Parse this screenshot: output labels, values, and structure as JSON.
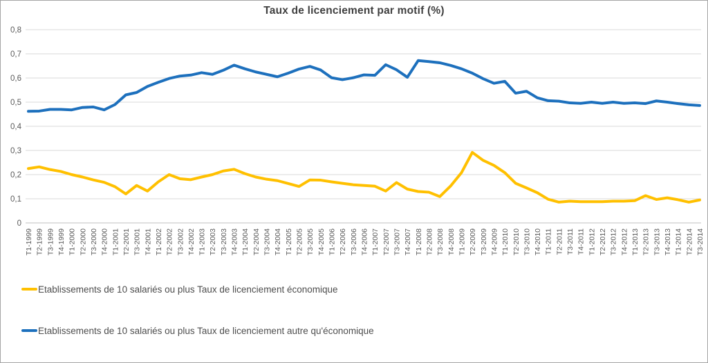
{
  "chart_data": {
    "type": "line",
    "title": "Taux de licenciement par motif (%)",
    "xlabel": "",
    "ylabel": "",
    "ylim": [
      0,
      0.8
    ],
    "ytick_step": 0.1,
    "decimal_separator": ",",
    "grid": true,
    "legend_position": "bottom-left",
    "categories": [
      "T1-1999",
      "T2-1999",
      "T3-1999",
      "T4-1999",
      "T1-2000",
      "T2-2000",
      "T3-2000",
      "T4-2000",
      "T1-2001",
      "T2-2001",
      "T3-2001",
      "T4-2001",
      "T1-2002",
      "T2-2002",
      "T3-2002",
      "T4-2002",
      "T1-2003",
      "T2-2003",
      "T3-2003",
      "T4-2003",
      "T1-2004",
      "T2-2004",
      "T3-2004",
      "T4-2004",
      "T1-2005",
      "T2-2005",
      "T3-2005",
      "T4-2005",
      "T1-2006",
      "T2-2006",
      "T3-2006",
      "T4-2006",
      "T1-2007",
      "T2-2007",
      "T3-2007",
      "T4-2007",
      "T1-2008",
      "T2-2008",
      "T3-2008",
      "T4-2008",
      "T1-2009",
      "T2-2009",
      "T3-2009",
      "T4-2009",
      "T1-2010",
      "T2-2010",
      "T3-2010",
      "T4-2010",
      "T1-2011",
      "T2-2011",
      "T3-2011",
      "T4-2011",
      "T1-2012",
      "T2-2012",
      "T3-2012",
      "T4-2012",
      "T1-2013",
      "T2-2013",
      "T3-2013",
      "T4-2013",
      "T1-2014",
      "T2-2014",
      "T3-2014"
    ],
    "series": [
      {
        "name": "Etablissements de 10 salariés ou plus Taux de licenciement économique",
        "color": "#FFC000",
        "values": [
          0.225,
          0.232,
          0.221,
          0.213,
          0.2,
          0.19,
          0.178,
          0.168,
          0.15,
          0.12,
          0.155,
          0.132,
          0.17,
          0.2,
          0.183,
          0.179,
          0.19,
          0.2,
          0.215,
          0.222,
          0.204,
          0.19,
          0.181,
          0.175,
          0.163,
          0.151,
          0.178,
          0.177,
          0.17,
          0.164,
          0.158,
          0.155,
          0.152,
          0.132,
          0.167,
          0.14,
          0.13,
          0.127,
          0.109,
          0.153,
          0.208,
          0.292,
          0.259,
          0.238,
          0.208,
          0.164,
          0.145,
          0.125,
          0.098,
          0.086,
          0.09,
          0.088,
          0.088,
          0.088,
          0.09,
          0.09,
          0.092,
          0.113,
          0.097,
          0.104,
          0.096,
          0.086,
          0.095
        ]
      },
      {
        "name": "Etablissements de 10 salariés ou plus Taux de licenciement autre qu'économique",
        "color": "#1D70BD",
        "values": [
          0.462,
          0.463,
          0.47,
          0.47,
          0.468,
          0.478,
          0.48,
          0.468,
          0.49,
          0.53,
          0.54,
          0.565,
          0.582,
          0.598,
          0.608,
          0.612,
          0.622,
          0.615,
          0.632,
          0.653,
          0.638,
          0.625,
          0.615,
          0.605,
          0.62,
          0.637,
          0.648,
          0.633,
          0.601,
          0.593,
          0.601,
          0.613,
          0.611,
          0.655,
          0.634,
          0.603,
          0.672,
          0.668,
          0.663,
          0.652,
          0.638,
          0.62,
          0.597,
          0.578,
          0.586,
          0.537,
          0.545,
          0.518,
          0.506,
          0.504,
          0.497,
          0.495,
          0.5,
          0.495,
          0.5,
          0.495,
          0.497,
          0.494,
          0.505,
          0.5,
          0.494,
          0.489,
          0.486
        ]
      }
    ]
  }
}
